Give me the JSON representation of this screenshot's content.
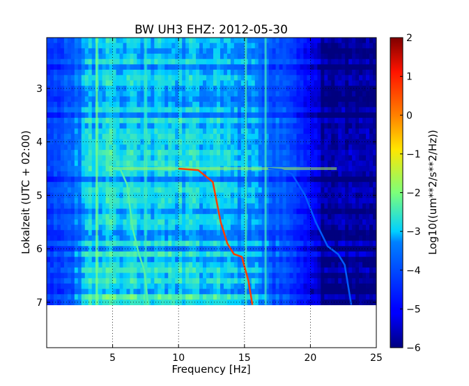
{
  "chart_data": {
    "type": "heatmap",
    "title": "BW UH3 EHZ: 2012-05-30",
    "xlabel": "Frequency [Hz]",
    "ylabel": "Lokalzeit (UTC + 02:00)",
    "xlim": [
      0,
      25
    ],
    "ylim": [
      7.85,
      2.05
    ],
    "y_inverted": true,
    "data_extent_y": [
      2.05,
      7.05
    ],
    "x_ticks": [
      5,
      10,
      15,
      20,
      25
    ],
    "x_tick_labels": [
      "5",
      "10",
      "15",
      "20",
      "25"
    ],
    "y_ticks": [
      3,
      4,
      5,
      6,
      7
    ],
    "y_tick_labels": [
      "3",
      "4",
      "5",
      "6",
      "7"
    ],
    "grid": "dotted",
    "colormap": "jet",
    "colorbar": {
      "label": "Log10((um**2/s**2/Hz))",
      "range": [
        -6,
        2
      ],
      "ticks": [
        2,
        1,
        0,
        -1,
        -2,
        -3,
        -4,
        -5,
        -6
      ],
      "tick_labels": [
        "2",
        "1",
        "0",
        "−1",
        "−2",
        "−3",
        "−4",
        "−5",
        "−6"
      ]
    },
    "background_levels": [
      {
        "freq": 0.0,
        "value": -4.3
      },
      {
        "freq": 2.0,
        "value": -3.9
      },
      {
        "freq": 3.5,
        "value": -3.0
      },
      {
        "freq": 10.0,
        "value": -3.1
      },
      {
        "freq": 15.0,
        "value": -3.3
      },
      {
        "freq": 17.5,
        "value": -4.0
      },
      {
        "freq": 19.5,
        "value": -4.8
      },
      {
        "freq": 21.0,
        "value": -6.0
      },
      {
        "freq": 25.0,
        "value": -6.0
      }
    ],
    "constant_lines": [
      {
        "freq": 3.8,
        "value": -2.0
      },
      {
        "freq": 7.5,
        "value": -2.6
      },
      {
        "freq": 15.1,
        "value": -2.4
      },
      {
        "freq": 16.6,
        "value": -2.5
      }
    ],
    "series": [
      {
        "points": [
          [
            4.9,
            4.5
          ],
          [
            5.6,
            4.52
          ],
          [
            6.1,
            4.8
          ],
          [
            6.5,
            5.6
          ],
          [
            7.0,
            6.1
          ],
          [
            7.4,
            6.4
          ],
          [
            7.7,
            7.05
          ]
        ],
        "value": -2.3
      },
      {
        "points": [
          [
            10.0,
            4.5
          ],
          [
            11.5,
            4.53
          ],
          [
            12.6,
            4.75
          ],
          [
            13.2,
            5.5
          ],
          [
            13.7,
            5.9
          ],
          [
            14.2,
            6.1
          ],
          [
            14.8,
            6.15
          ],
          [
            15.3,
            6.6
          ],
          [
            15.6,
            7.05
          ]
        ],
        "value": 0.7
      },
      {
        "points": [
          [
            16.8,
            4.5
          ],
          [
            17.8,
            4.52
          ],
          [
            18.6,
            4.6
          ],
          [
            19.6,
            5.0
          ],
          [
            20.4,
            5.5
          ],
          [
            21.3,
            5.95
          ],
          [
            22.1,
            6.1
          ],
          [
            22.6,
            6.3
          ],
          [
            23.1,
            7.05
          ]
        ],
        "value": -3.8
      }
    ],
    "horizontal_band": {
      "time": 4.5,
      "x_range": [
        5.0,
        22.0
      ],
      "value": -1.6
    }
  }
}
